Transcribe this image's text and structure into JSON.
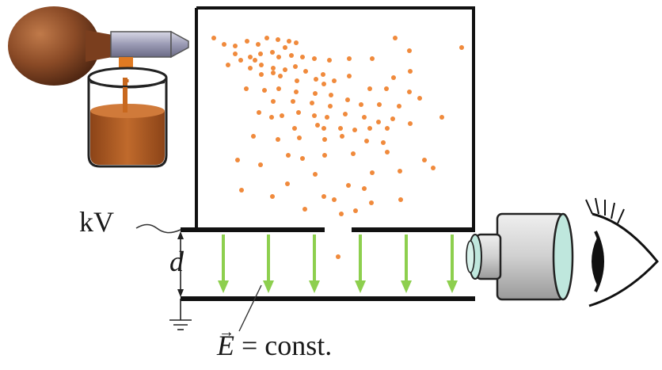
{
  "labels": {
    "voltage": "kV",
    "gap": "d",
    "field_symbol": "E",
    "field_rest": " = const."
  },
  "colors": {
    "droplet": "#f08a3c",
    "field_arrow": "#8dcf4e",
    "plate": "#111111",
    "liquid": "#a85a22",
    "bulb": "#8a4a26",
    "scope_body": "#d4d4d4",
    "scope_lens": "#bfe7dd"
  },
  "icons": {
    "dropper": "atomizer-bulb-icon",
    "beaker": "oil-beaker-icon",
    "microscope": "microscope-tube-icon",
    "eye": "observer-eye-icon",
    "ground": "ground-symbol-icon"
  }
}
